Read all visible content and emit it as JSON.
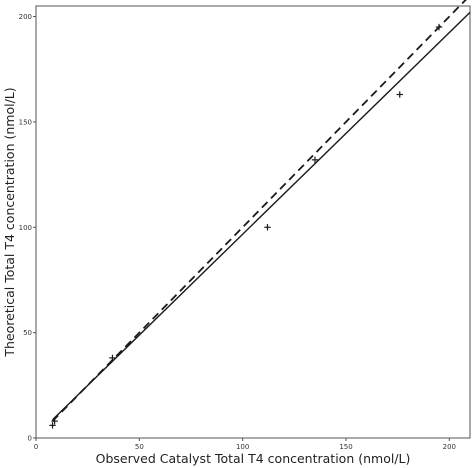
{
  "chart_data": {
    "type": "scatter",
    "title": "",
    "xlabel": "Observed Catalyst Total T4 concentration (nmol/L)",
    "ylabel": "Theoretical Total T4 concentration (nmol/L)",
    "xlim": [
      0,
      210
    ],
    "ylim": [
      0,
      205
    ],
    "x_ticks": [
      0,
      50,
      100,
      150,
      200
    ],
    "y_ticks": [
      0,
      50,
      100,
      150,
      200
    ],
    "grid": false,
    "points": [
      {
        "x": 8,
        "y": 6
      },
      {
        "x": 9,
        "y": 8
      },
      {
        "x": 37,
        "y": 38
      },
      {
        "x": 112,
        "y": 100
      },
      {
        "x": 135,
        "y": 132
      },
      {
        "x": 176,
        "y": 163
      },
      {
        "x": 195,
        "y": 195
      }
    ],
    "lines": [
      {
        "style": "solid",
        "intercept": 1,
        "slope": 0.957,
        "x_range": [
          8,
          210
        ]
      },
      {
        "style": "dashed",
        "intercept": 0,
        "slope": 1,
        "x_range": [
          8,
          210
        ]
      }
    ],
    "colors": {
      "marks": "#1a1a1a",
      "frame": "#555555",
      "text": "#222222"
    }
  }
}
